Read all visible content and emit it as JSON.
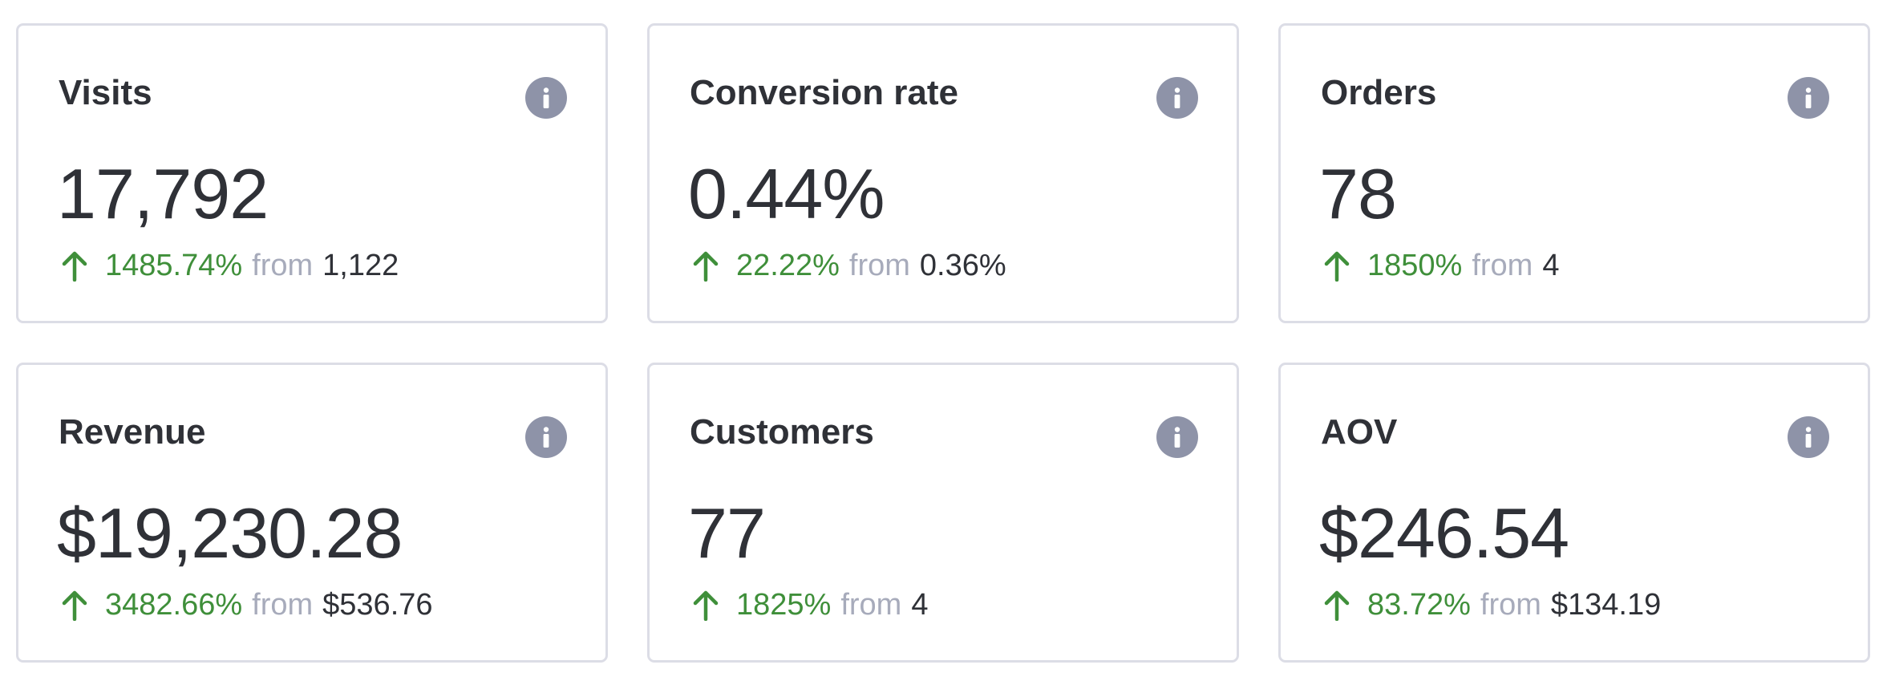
{
  "colors": {
    "positive": "#3f8f3a",
    "muted": "#a7abbb",
    "text": "#2f3137",
    "icon_bg": "#8e93a8",
    "border": "#dcdde6"
  },
  "cards": [
    {
      "title": "Visits",
      "value": "17,792",
      "change": "1485.74%",
      "from_label": "from",
      "previous": "1,122",
      "trend_icon": "arrow-up-icon",
      "info_icon": "info-icon"
    },
    {
      "title": "Conversion rate",
      "value": "0.44%",
      "change": "22.22%",
      "from_label": "from",
      "previous": "0.36%",
      "trend_icon": "arrow-up-icon",
      "info_icon": "info-icon"
    },
    {
      "title": "Orders",
      "value": "78",
      "change": "1850%",
      "from_label": "from",
      "previous": "4",
      "trend_icon": "arrow-up-icon",
      "info_icon": "info-icon"
    },
    {
      "title": "Revenue",
      "value": "$19,230.28",
      "change": "3482.66%",
      "from_label": "from",
      "previous": "$536.76",
      "trend_icon": "arrow-up-icon",
      "info_icon": "info-icon"
    },
    {
      "title": "Customers",
      "value": "77",
      "change": "1825%",
      "from_label": "from",
      "previous": "4",
      "trend_icon": "arrow-up-icon",
      "info_icon": "info-icon"
    },
    {
      "title": "AOV",
      "value": "$246.54",
      "change": "83.72%",
      "from_label": "from",
      "previous": "$134.19",
      "trend_icon": "arrow-up-icon",
      "info_icon": "info-icon"
    }
  ]
}
